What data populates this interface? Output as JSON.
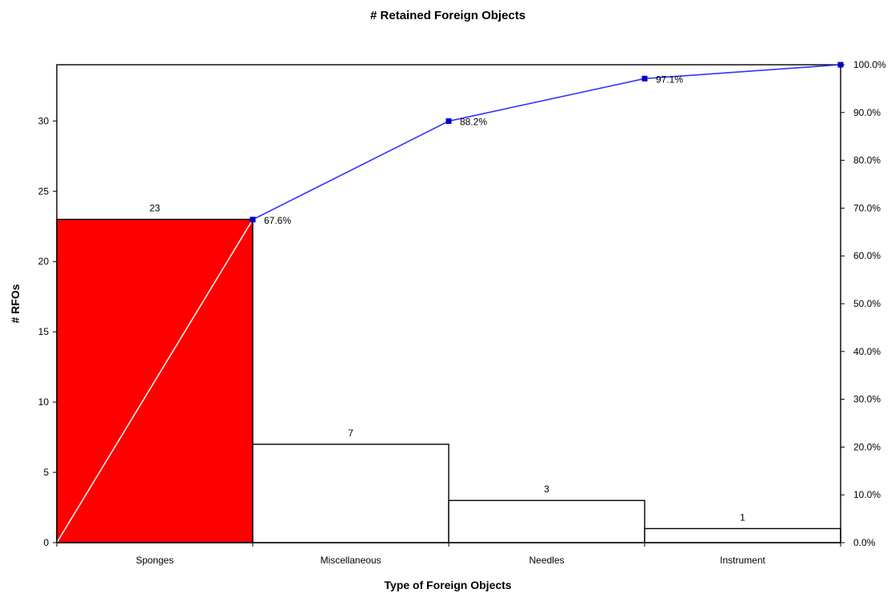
{
  "chart_data": {
    "type": "bar",
    "title": "# Retained Foreign Objects",
    "xlabel": "Type of Foreign Objects",
    "ylabel": "# RFOs",
    "categories": [
      "Sponges",
      "Miscellaneous",
      "Needles",
      "Instrument"
    ],
    "series": [
      {
        "values": [
          23,
          7,
          3,
          1
        ],
        "data_labels": [
          "23",
          "7",
          "3",
          "1"
        ]
      },
      {
        "type": "line",
        "values": [
          67.6,
          88.2,
          97.1,
          100.0
        ],
        "data_labels": [
          "67.6%",
          "88.2%",
          "97.1%",
          ""
        ]
      }
    ],
    "ylim": [
      0,
      34
    ],
    "y_ticks": [
      0,
      5,
      10,
      15,
      20,
      25,
      30
    ],
    "y_tick_labels": [
      "0",
      "5",
      "10",
      "15",
      "20",
      "25",
      "30"
    ],
    "y2lim": [
      0,
      100
    ],
    "y2_ticks": [
      0,
      10,
      20,
      30,
      40,
      50,
      60,
      70,
      80,
      90,
      100
    ],
    "y2_tick_labels": [
      "0.0%",
      "10.0%",
      "20.0%",
      "30.0%",
      "40.0%",
      "50.0%",
      "60.0%",
      "70.0%",
      "80.0%",
      "90.0%",
      "100.0%"
    ],
    "grid": false,
    "legend": "none",
    "colors": {
      "highlight_bar": "#ff0000",
      "bar": "#ffffff",
      "line": "#3333ff",
      "marker": "#0000cc",
      "diagonal": "#ffffff"
    }
  }
}
